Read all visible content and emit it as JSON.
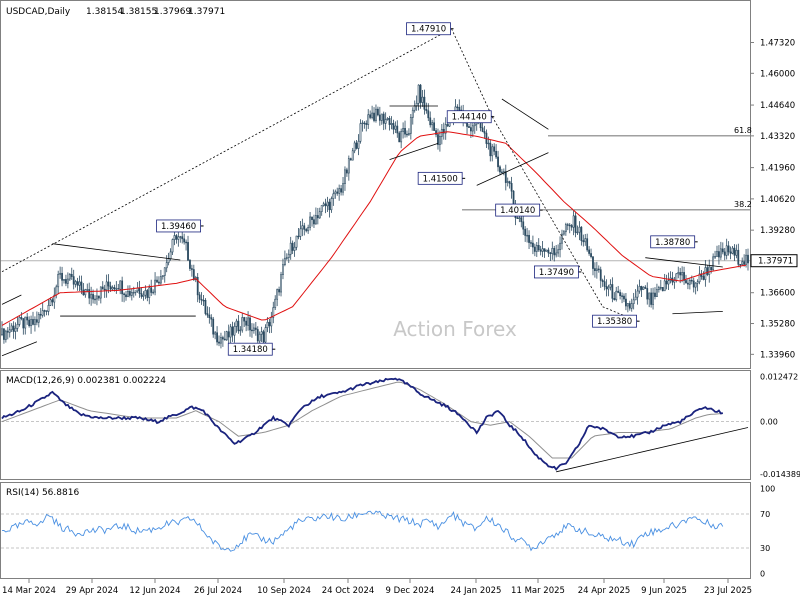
{
  "colors": {
    "background": "#ffffff",
    "grid": "#b4b4b4",
    "candles": "#2b4a60",
    "sma": "#e01010",
    "macd_main": "#1a237e",
    "macd_signal": "#909090",
    "rsi_line": "#4a90e2",
    "annotation": "#000000",
    "box_border": "#1a237e"
  },
  "chart_data": [
    {
      "type": "candlestick",
      "title": "USDCAD,Daily",
      "ohlc_header": [
        "1.38154",
        "1.38155",
        "1.37969",
        "1.37971"
      ],
      "ylim": [
        1.3346,
        1.4837
      ],
      "yticks": [
        "1.47320",
        "1.46000",
        "1.44640",
        "1.43320",
        "1.41960",
        "1.40620",
        "1.39280",
        "1.37971",
        "1.36600",
        "1.35280",
        "1.33960"
      ],
      "xlabels": [
        "14 Mar 2024",
        "29 Apr 2024",
        "12 Jun 2024",
        "26 Jul 2024",
        "10 Sep 2024",
        "24 Oct 2024",
        "9 Dec 2024",
        "24 Jan 2025",
        "11 Mar 2025",
        "24 Apr 2025",
        "9 Jun 2025",
        "23 Jul 2025"
      ],
      "current_price": "1.37971",
      "price_path": [
        [
          0,
          1.348
        ],
        [
          5,
          1.351
        ],
        [
          10,
          1.353
        ],
        [
          15,
          1.352
        ],
        [
          20,
          1.356
        ],
        [
          25,
          1.363
        ],
        [
          30,
          1.373
        ],
        [
          35,
          1.371
        ],
        [
          40,
          1.368
        ],
        [
          45,
          1.365
        ],
        [
          50,
          1.366
        ],
        [
          55,
          1.369
        ],
        [
          60,
          1.37
        ],
        [
          65,
          1.366
        ],
        [
          70,
          1.368
        ],
        [
          75,
          1.366
        ],
        [
          80,
          1.371
        ],
        [
          85,
          1.379
        ],
        [
          90,
          1.391
        ],
        [
          95,
          1.385
        ],
        [
          100,
          1.37
        ],
        [
          105,
          1.358
        ],
        [
          110,
          1.348
        ],
        [
          115,
          1.346
        ],
        [
          120,
          1.35
        ],
        [
          125,
          1.355
        ],
        [
          130,
          1.349
        ],
        [
          135,
          1.347
        ],
        [
          140,
          1.358
        ],
        [
          145,
          1.376
        ],
        [
          150,
          1.387
        ],
        [
          155,
          1.392
        ],
        [
          160,
          1.397
        ],
        [
          165,
          1.402
        ],
        [
          170,
          1.405
        ],
        [
          175,
          1.411
        ],
        [
          180,
          1.423
        ],
        [
          185,
          1.436
        ],
        [
          190,
          1.443
        ],
        [
          195,
          1.441
        ],
        [
          200,
          1.44
        ],
        [
          205,
          1.432
        ],
        [
          210,
          1.436
        ],
        [
          215,
          1.452
        ],
        [
          220,
          1.441
        ],
        [
          225,
          1.432
        ],
        [
          230,
          1.437
        ],
        [
          235,
          1.447
        ],
        [
          240,
          1.436
        ],
        [
          245,
          1.44
        ],
        [
          250,
          1.431
        ],
        [
          255,
          1.422
        ],
        [
          260,
          1.416
        ],
        [
          265,
          1.401
        ],
        [
          270,
          1.392
        ],
        [
          275,
          1.384
        ],
        [
          280,
          1.386
        ],
        [
          285,
          1.382
        ],
        [
          290,
          1.392
        ],
        [
          295,
          1.396
        ],
        [
          300,
          1.389
        ],
        [
          305,
          1.378
        ],
        [
          310,
          1.37
        ],
        [
          315,
          1.366
        ],
        [
          320,
          1.362
        ],
        [
          325,
          1.36
        ],
        [
          330,
          1.368
        ],
        [
          335,
          1.362
        ],
        [
          340,
          1.367
        ],
        [
          345,
          1.372
        ],
        [
          350,
          1.374
        ],
        [
          355,
          1.369
        ],
        [
          360,
          1.372
        ],
        [
          365,
          1.377
        ],
        [
          370,
          1.382
        ],
        [
          375,
          1.384
        ],
        [
          380,
          1.381
        ],
        [
          385,
          1.38
        ]
      ],
      "sma_path": [
        [
          0,
          1.352
        ],
        [
          30,
          1.366
        ],
        [
          60,
          1.367
        ],
        [
          90,
          1.37
        ],
        [
          100,
          1.372
        ],
        [
          115,
          1.36
        ],
        [
          135,
          1.354
        ],
        [
          150,
          1.36
        ],
        [
          170,
          1.381
        ],
        [
          190,
          1.405
        ],
        [
          205,
          1.426
        ],
        [
          215,
          1.433
        ],
        [
          230,
          1.435
        ],
        [
          245,
          1.433
        ],
        [
          260,
          1.43
        ],
        [
          275,
          1.418
        ],
        [
          290,
          1.405
        ],
        [
          305,
          1.394
        ],
        [
          320,
          1.382
        ],
        [
          335,
          1.373
        ],
        [
          350,
          1.371
        ],
        [
          365,
          1.375
        ],
        [
          385,
          1.378
        ]
      ],
      "annotations": [
        {
          "label": "1.47910",
          "price": 1.4791,
          "point_x": 232
        },
        {
          "label": "1.44140",
          "price": 1.4414,
          "point_x": 253
        },
        {
          "label": "1.41500",
          "price": 1.415,
          "point_x": 238
        },
        {
          "label": "1.40140",
          "price": 1.4014,
          "point_x": 278
        },
        {
          "label": "1.39460",
          "price": 1.3946,
          "point_x": 103
        },
        {
          "label": "1.38780",
          "price": 1.3878,
          "point_x": 358
        },
        {
          "label": "1.37490",
          "price": 1.3749,
          "point_x": 298
        },
        {
          "label": "1.35380",
          "price": 1.3538,
          "point_x": 328
        },
        {
          "label": "1.34180",
          "price": 1.3418,
          "point_x": 140
        }
      ],
      "fib_levels": [
        {
          "label": "61.8",
          "price": 1.4332
        },
        {
          "label": "38.2",
          "price": 1.4015
        }
      ],
      "watermark": "Action Forex"
    },
    {
      "type": "line",
      "title": "MACD(12,26,9) 0.002381 0.002224",
      "ylim": [
        -0.0155,
        0.0131
      ],
      "yticks": [
        "0.012472",
        "0.00",
        "-0.014389"
      ],
      "macd_path": [
        [
          0,
          0.001
        ],
        [
          10,
          0.003
        ],
        [
          20,
          0.006
        ],
        [
          26,
          0.008
        ],
        [
          32,
          0.005
        ],
        [
          40,
          0.002
        ],
        [
          50,
          0.001
        ],
        [
          60,
          0.001
        ],
        [
          70,
          0.001
        ],
        [
          80,
          0.0
        ],
        [
          90,
          0.002
        ],
        [
          98,
          0.004
        ],
        [
          104,
          0.003
        ],
        [
          112,
          -0.002
        ],
        [
          120,
          -0.006
        ],
        [
          128,
          -0.004
        ],
        [
          135,
          -0.001
        ],
        [
          140,
          0.001
        ],
        [
          148,
          -0.001
        ],
        [
          155,
          0.004
        ],
        [
          165,
          0.007
        ],
        [
          175,
          0.008
        ],
        [
          185,
          0.01
        ],
        [
          195,
          0.011
        ],
        [
          203,
          0.012
        ],
        [
          210,
          0.01
        ],
        [
          215,
          0.008
        ],
        [
          222,
          0.006
        ],
        [
          230,
          0.004
        ],
        [
          238,
          0.001
        ],
        [
          245,
          -0.003
        ],
        [
          250,
          0.001
        ],
        [
          256,
          0.003
        ],
        [
          262,
          -0.001
        ],
        [
          268,
          -0.004
        ],
        [
          275,
          -0.009
        ],
        [
          282,
          -0.012
        ],
        [
          286,
          -0.013
        ],
        [
          292,
          -0.011
        ],
        [
          298,
          -0.006
        ],
        [
          303,
          -0.001
        ],
        [
          310,
          -0.002
        ],
        [
          318,
          -0.004
        ],
        [
          326,
          -0.004
        ],
        [
          334,
          -0.003
        ],
        [
          342,
          -0.001
        ],
        [
          350,
          0.0
        ],
        [
          356,
          0.002
        ],
        [
          362,
          0.004
        ],
        [
          368,
          0.003
        ],
        [
          372,
          0.0024
        ]
      ],
      "signal_path": [
        [
          0,
          0.0
        ],
        [
          20,
          0.004
        ],
        [
          30,
          0.006
        ],
        [
          45,
          0.003
        ],
        [
          70,
          0.001
        ],
        [
          90,
          0.001
        ],
        [
          100,
          0.003
        ],
        [
          112,
          0.0
        ],
        [
          122,
          -0.004
        ],
        [
          135,
          -0.003
        ],
        [
          148,
          -0.001
        ],
        [
          160,
          0.003
        ],
        [
          175,
          0.007
        ],
        [
          190,
          0.009
        ],
        [
          205,
          0.011
        ],
        [
          215,
          0.009
        ],
        [
          228,
          0.005
        ],
        [
          242,
          0.0
        ],
        [
          252,
          -0.001
        ],
        [
          262,
          0.0
        ],
        [
          272,
          -0.004
        ],
        [
          284,
          -0.01
        ],
        [
          294,
          -0.01
        ],
        [
          305,
          -0.004
        ],
        [
          318,
          -0.003
        ],
        [
          330,
          -0.003
        ],
        [
          345,
          -0.002
        ],
        [
          358,
          0.001
        ],
        [
          365,
          0.002
        ],
        [
          372,
          0.0022
        ]
      ],
      "trendline": [
        [
          286,
          -0.0138
        ],
        [
          385,
          -0.0016
        ]
      ]
    },
    {
      "type": "line",
      "title": "RSI(14) 56.8816",
      "ylim": [
        -3,
        103
      ],
      "yticks": [
        "100",
        "70",
        "30",
        "0"
      ],
      "levels": [
        70,
        30
      ],
      "rsi_path": [
        [
          0,
          50
        ],
        [
          8,
          55
        ],
        [
          15,
          62
        ],
        [
          20,
          58
        ],
        [
          24,
          70
        ],
        [
          30,
          55
        ],
        [
          38,
          48
        ],
        [
          45,
          50
        ],
        [
          55,
          52
        ],
        [
          62,
          56
        ],
        [
          70,
          50
        ],
        [
          78,
          52
        ],
        [
          85,
          58
        ],
        [
          92,
          60
        ],
        [
          98,
          65
        ],
        [
          104,
          50
        ],
        [
          110,
          35
        ],
        [
          115,
          28
        ],
        [
          120,
          32
        ],
        [
          128,
          45
        ],
        [
          135,
          40
        ],
        [
          140,
          38
        ],
        [
          146,
          48
        ],
        [
          152,
          60
        ],
        [
          160,
          64
        ],
        [
          168,
          68
        ],
        [
          176,
          63
        ],
        [
          184,
          70
        ],
        [
          190,
          73
        ],
        [
          196,
          68
        ],
        [
          203,
          65
        ],
        [
          210,
          62
        ],
        [
          215,
          58
        ],
        [
          220,
          62
        ],
        [
          226,
          55
        ],
        [
          232,
          70
        ],
        [
          238,
          60
        ],
        [
          244,
          52
        ],
        [
          250,
          65
        ],
        [
          256,
          58
        ],
        [
          262,
          45
        ],
        [
          268,
          38
        ],
        [
          274,
          30
        ],
        [
          280,
          40
        ],
        [
          286,
          48
        ],
        [
          292,
          55
        ],
        [
          298,
          52
        ],
        [
          305,
          45
        ],
        [
          312,
          42
        ],
        [
          320,
          38
        ],
        [
          326,
          35
        ],
        [
          332,
          48
        ],
        [
          338,
          50
        ],
        [
          344,
          55
        ],
        [
          350,
          58
        ],
        [
          356,
          68
        ],
        [
          362,
          60
        ],
        [
          368,
          57
        ],
        [
          372,
          57
        ]
      ]
    }
  ]
}
